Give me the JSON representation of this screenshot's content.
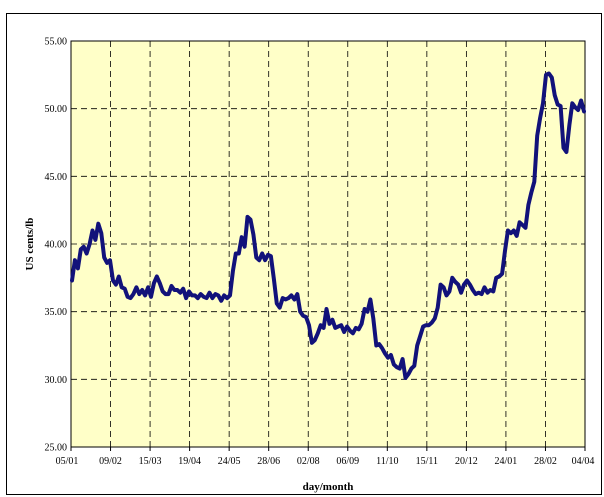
{
  "chart_data": {
    "type": "line",
    "title": "",
    "xlabel": "day/month",
    "ylabel": "US cents/lb",
    "ylim": [
      25,
      55
    ],
    "y_ticks": [
      "25.00",
      "30.00",
      "35.00",
      "40.00",
      "45.00",
      "50.00",
      "55.00"
    ],
    "y_tick_values": [
      25,
      30,
      35,
      40,
      45,
      50,
      55
    ],
    "x_ticks": [
      "05/01",
      "09/02",
      "15/03",
      "19/04",
      "24/05",
      "28/06",
      "02/08",
      "06/09",
      "11/10",
      "15/11",
      "20/12",
      "24/01",
      "28/02",
      "04/04"
    ],
    "grid": true,
    "legend": "none",
    "colors": {
      "line": "#12127a",
      "plot_bg": "#ffffc8"
    },
    "series": [
      {
        "values": [
          37.3,
          38.8,
          38.2,
          39.6,
          39.8,
          39.3,
          40.0,
          41.0,
          40.3,
          41.5,
          40.8,
          39.0,
          38.6,
          38.8,
          37.3,
          37.0,
          37.6,
          36.8,
          36.7,
          36.1,
          36.0,
          36.3,
          36.8,
          36.3,
          36.6,
          36.2,
          36.8,
          36.1,
          37.1,
          37.6,
          37.1,
          36.5,
          36.3,
          36.3,
          36.9,
          36.6,
          36.6,
          36.4,
          36.7,
          36.0,
          36.5,
          36.2,
          36.2,
          36.0,
          36.3,
          36.1,
          36.0,
          36.4,
          36.0,
          36.3,
          36.2,
          35.8,
          36.2,
          36.0,
          36.2,
          38.0,
          39.3,
          39.3,
          40.5,
          39.8,
          42.0,
          41.8,
          40.7,
          39.0,
          38.8,
          39.3,
          38.8,
          39.2,
          39.1,
          37.4,
          35.6,
          35.3,
          36.0,
          35.9,
          36.0,
          36.2,
          35.9,
          36.3,
          35.0,
          34.7,
          34.6,
          34.0,
          32.7,
          32.9,
          33.4,
          34.0,
          33.8,
          35.2,
          34.1,
          34.4,
          33.8,
          33.9,
          34.0,
          33.5,
          33.9,
          33.6,
          33.4,
          33.8,
          33.7,
          34.1,
          35.2,
          35.0,
          35.9,
          34.5,
          32.5,
          32.6,
          32.3,
          31.9,
          31.6,
          31.8,
          31.1,
          30.9,
          30.8,
          31.5,
          30.1,
          30.4,
          30.8,
          31.0,
          32.5,
          33.2,
          33.9,
          34.0,
          34.0,
          34.2,
          34.5,
          35.3,
          37.0,
          36.8,
          36.2,
          36.5,
          37.5,
          37.2,
          37.0,
          36.4,
          37.0,
          37.3,
          37.0,
          36.6,
          36.3,
          36.4,
          36.3,
          36.8,
          36.4,
          36.6,
          36.5,
          37.5,
          37.6,
          37.8,
          39.5,
          41.0,
          40.8,
          41.0,
          40.6,
          41.6,
          41.4,
          41.2,
          42.9,
          43.8,
          44.6,
          48.0,
          49.3,
          50.4,
          52.5,
          52.6,
          52.3,
          51.0,
          50.3,
          50.2,
          47.1,
          46.8,
          48.8,
          50.4,
          50.1,
          49.9,
          50.6,
          49.8
        ]
      }
    ]
  }
}
